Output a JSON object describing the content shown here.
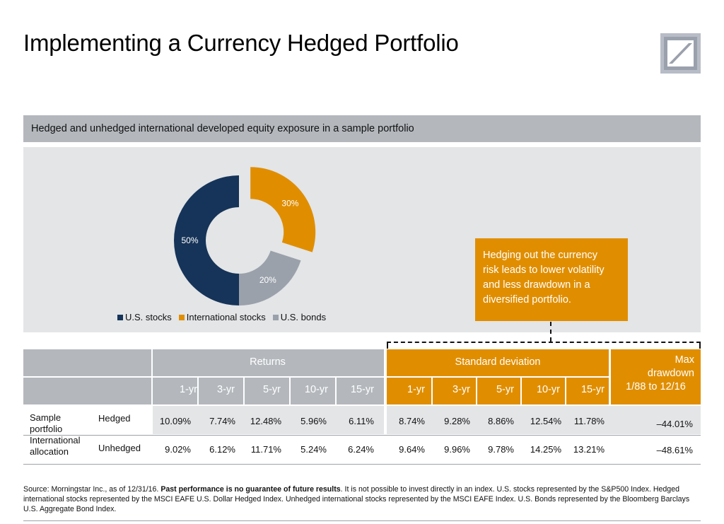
{
  "title": "Implementing a Currency Hedged Portfolio",
  "subhead": "Hedged and unhedged international developed equity exposure in a sample portfolio",
  "callout": [
    "Hedging out the currency",
    "risk leads to lower volatility",
    "and less drawdown in a",
    "diversified portfolio."
  ],
  "colors": {
    "navy": "#163459",
    "orange": "#e08e00",
    "gray": "#9aa1ab"
  },
  "chart_data": {
    "type": "pie",
    "categories": [
      "U.S. stocks",
      "International stocks",
      "U.S. bonds"
    ],
    "values": [
      50,
      30,
      20
    ],
    "labels": [
      "50%",
      "30%",
      "20%"
    ],
    "colors": [
      "#163459",
      "#e08e00",
      "#9aa1ab"
    ],
    "exploded": [
      false,
      true,
      false
    ],
    "legend_position": "bottom"
  },
  "table": {
    "group_returns": "Returns",
    "group_std": "Standard deviation",
    "group_max": [
      "Max",
      "drawdown",
      "1/88 to 12/16"
    ],
    "periods": [
      "1-yr",
      "3-yr",
      "5-yr",
      "10-yr",
      "15-yr"
    ],
    "row_group_label": [
      "Sample",
      "portfolio",
      "International",
      "allocation"
    ],
    "rows": [
      {
        "label": "Hedged",
        "returns": [
          "10.09%",
          "7.74%",
          "12.48%",
          "5.96%",
          "6.11%"
        ],
        "std": [
          "8.74%",
          "9.28%",
          "8.86%",
          "12.54%",
          "11.78%"
        ],
        "max": "–44.01%"
      },
      {
        "label": "Unhedged",
        "returns": [
          "9.02%",
          "6.12%",
          "11.71%",
          "5.24%",
          "6.24%"
        ],
        "std": [
          "9.64%",
          "9.96%",
          "9.78%",
          "14.25%",
          "13.21%"
        ],
        "max": "–48.61%"
      }
    ]
  },
  "source": {
    "lead": "Source: Morningstar Inc., as of 12/31/16. ",
    "bold": "Past performance is no guarantee of future results",
    "rest": ". It is not possible to invest directly in an index. U.S. stocks represented by the S&P500 Index. Hedged international stocks represented by the MSCI EAFE U.S. Dollar Hedged Index. Unhedged international stocks represented by the MSCI EAFE Index. U.S. Bonds represented by the Bloomberg Barclays U.S. Aggregate Bond Index."
  }
}
